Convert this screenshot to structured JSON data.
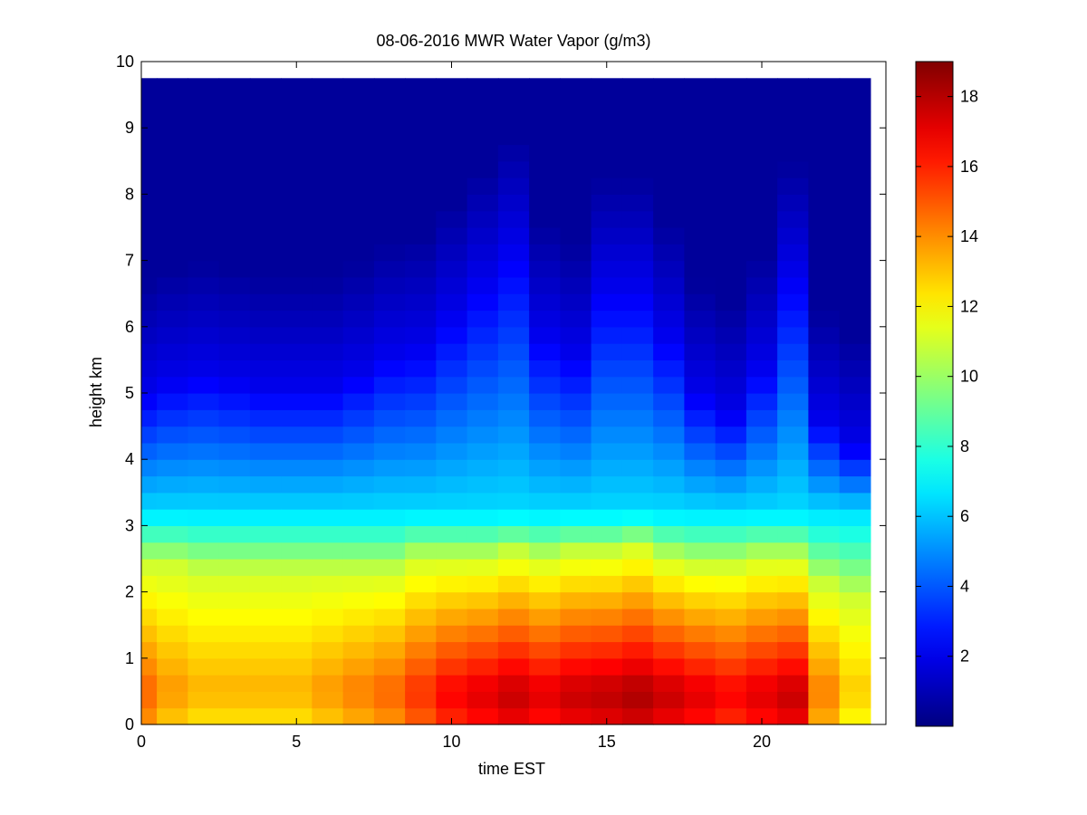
{
  "chart_data": {
    "type": "heatmap",
    "title": "08-06-2016 MWR Water Vapor (g/m3)",
    "xlabel": "time EST",
    "ylabel": "height km",
    "xlim": [
      0,
      24
    ],
    "ylim": [
      0,
      10
    ],
    "x_ticks": [
      0,
      5,
      10,
      15,
      20
    ],
    "y_ticks": [
      0,
      1,
      2,
      3,
      4,
      5,
      6,
      7,
      8,
      9,
      10
    ],
    "colorbar": {
      "colormap": "jet",
      "range": [
        0,
        19
      ],
      "ticks": [
        2,
        4,
        6,
        8,
        10,
        12,
        14,
        16,
        18
      ]
    },
    "data_extent": {
      "x": [
        0,
        23.5
      ],
      "y": [
        0,
        9.75
      ]
    },
    "time_hours": [
      0,
      1,
      2,
      3,
      4,
      5,
      6,
      7,
      8,
      9,
      10,
      11,
      12,
      13,
      14,
      15,
      16,
      17,
      18,
      19,
      20,
      21,
      22,
      23
    ],
    "surface_vapor": [
      15.0,
      14.0,
      13.5,
      13.5,
      13.5,
      13.5,
      14.0,
      14.5,
      15.0,
      16.0,
      17.0,
      17.5,
      18.0,
      17.5,
      18.0,
      18.2,
      18.5,
      18.0,
      17.5,
      17.0,
      17.5,
      18.0,
      14.5,
      13.0
    ],
    "low_boundary_km": [
      2.4,
      2.4,
      2.3,
      2.3,
      2.3,
      2.3,
      2.3,
      2.3,
      2.3,
      2.5,
      2.5,
      2.5,
      2.6,
      2.5,
      2.6,
      2.6,
      2.7,
      2.5,
      2.4,
      2.4,
      2.5,
      2.5,
      2.1,
      1.9
    ],
    "upper_moisture_km": [
      5.0,
      5.2,
      5.3,
      5.2,
      5.1,
      5.1,
      5.1,
      5.3,
      5.6,
      5.7,
      6.2,
      6.7,
      7.2,
      5.9,
      5.6,
      6.6,
      6.6,
      5.9,
      5.0,
      4.7,
      5.4,
      6.8,
      4.6,
      4.2
    ]
  }
}
